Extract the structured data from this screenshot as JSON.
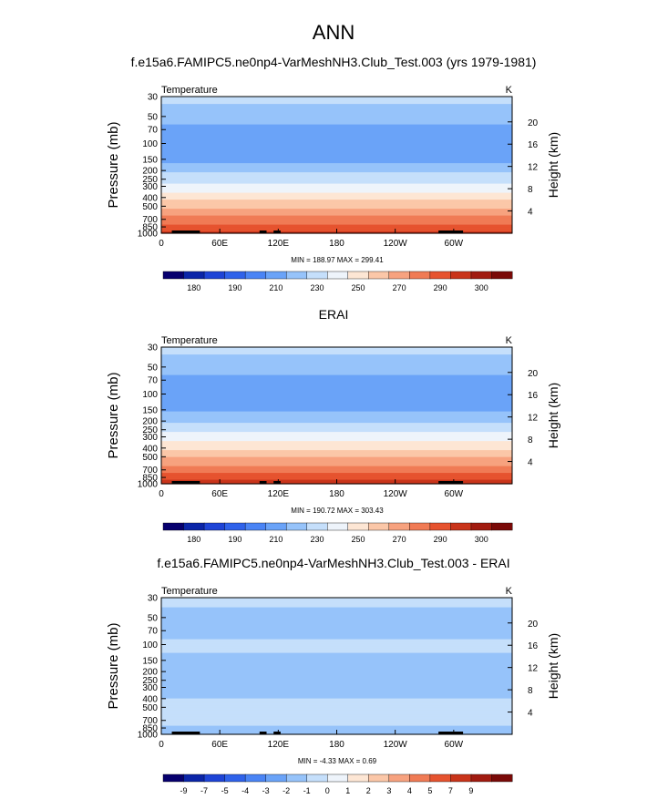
{
  "title": "ANN",
  "chart_data": [
    {
      "type": "heatmap",
      "title": "f.e15a6.FAMIPC5.ne0np4-VarMeshNH3.Club_Test.003 (yrs 1979-1981)",
      "left_label": "Temperature",
      "right_label": "K",
      "ylabel": "Pressure (mb)",
      "ylabel_right": "Height (km)",
      "y_scale": "log",
      "ylim": [
        1000,
        30
      ],
      "y_ticks": [
        "30",
        "50",
        "70",
        "100",
        "150",
        "200",
        "250",
        "300",
        "400",
        "500",
        "700",
        "850",
        "1000"
      ],
      "y_ticks_right": [
        "20",
        "16",
        "12",
        "8",
        "4"
      ],
      "x_ticks": [
        "0",
        "60E",
        "120E",
        "180",
        "120W",
        "60W"
      ],
      "stats": "MIN = 188.97  MAX = 299.41",
      "colorbar_labels": [
        "180",
        "190",
        "210",
        "230",
        "250",
        "270",
        "290",
        "300"
      ],
      "colorbar_colors": [
        "#07006e",
        "#0b25a8",
        "#1e44d6",
        "#2f62ea",
        "#4a84f5",
        "#6aa3f8",
        "#96c3fa",
        "#c5dffb",
        "#eef4fb",
        "#fde6d4",
        "#fbc7a8",
        "#f7a27f",
        "#f07b55",
        "#e6532f",
        "#c9341a",
        "#a11b10",
        "#7a0a08"
      ],
      "profile_levels": [
        {
          "p": 30,
          "t": 223
        },
        {
          "p": 50,
          "t": 215
        },
        {
          "p": 70,
          "t": 207
        },
        {
          "p": 100,
          "t": 200
        },
        {
          "p": 150,
          "t": 208
        },
        {
          "p": 200,
          "t": 218
        },
        {
          "p": 250,
          "t": 226
        },
        {
          "p": 300,
          "t": 234
        },
        {
          "p": 400,
          "t": 248
        },
        {
          "p": 500,
          "t": 259
        },
        {
          "p": 700,
          "t": 274
        },
        {
          "p": 850,
          "t": 284
        },
        {
          "p": 1000,
          "t": 292
        }
      ]
    },
    {
      "type": "heatmap",
      "title": "ERAI",
      "left_label": "Temperature",
      "right_label": "K",
      "ylabel": "Pressure (mb)",
      "ylabel_right": "Height (km)",
      "y_scale": "log",
      "ylim": [
        1000,
        30
      ],
      "y_ticks": [
        "30",
        "50",
        "70",
        "100",
        "150",
        "200",
        "250",
        "300",
        "400",
        "500",
        "700",
        "850",
        "1000"
      ],
      "y_ticks_right": [
        "20",
        "16",
        "12",
        "8",
        "4"
      ],
      "x_ticks": [
        "0",
        "60E",
        "120E",
        "180",
        "120W",
        "60W"
      ],
      "stats": "MIN = 190.72  MAX = 303.43",
      "colorbar_labels": [
        "180",
        "190",
        "210",
        "230",
        "250",
        "270",
        "290",
        "300"
      ],
      "colorbar_colors": [
        "#07006e",
        "#0b25a8",
        "#1e44d6",
        "#2f62ea",
        "#4a84f5",
        "#6aa3f8",
        "#96c3fa",
        "#c5dffb",
        "#eef4fb",
        "#fde6d4",
        "#fbc7a8",
        "#f7a27f",
        "#f07b55",
        "#e6532f",
        "#c9341a",
        "#a11b10",
        "#7a0a08"
      ],
      "profile_levels": [
        {
          "p": 30,
          "t": 223
        },
        {
          "p": 50,
          "t": 215
        },
        {
          "p": 70,
          "t": 207
        },
        {
          "p": 100,
          "t": 201
        },
        {
          "p": 150,
          "t": 209
        },
        {
          "p": 200,
          "t": 219
        },
        {
          "p": 250,
          "t": 227
        },
        {
          "p": 300,
          "t": 235
        },
        {
          "p": 400,
          "t": 249
        },
        {
          "p": 500,
          "t": 260
        },
        {
          "p": 700,
          "t": 276
        },
        {
          "p": 850,
          "t": 286
        },
        {
          "p": 1000,
          "t": 296
        }
      ]
    },
    {
      "type": "heatmap",
      "title": "f.e15a6.FAMIPC5.ne0np4-VarMeshNH3.Club_Test.003 - ERAI",
      "left_label": "Temperature",
      "right_label": "K",
      "ylabel": "Pressure (mb)",
      "ylabel_right": "Height (km)",
      "y_scale": "log",
      "ylim": [
        1000,
        30
      ],
      "y_ticks": [
        "30",
        "50",
        "70",
        "100",
        "150",
        "200",
        "250",
        "300",
        "400",
        "500",
        "700",
        "850",
        "1000"
      ],
      "y_ticks_right": [
        "20",
        "16",
        "12",
        "8",
        "4"
      ],
      "x_ticks": [
        "0",
        "60E",
        "120E",
        "180",
        "120W",
        "60W"
      ],
      "stats": "MIN = -4.33  MAX =   0.69",
      "colorbar_labels": [
        "-9",
        "-7",
        "-5",
        "-4",
        "-3",
        "-2",
        "-1",
        "0",
        "1",
        "2",
        "3",
        "4",
        "5",
        "7",
        "9"
      ],
      "colorbar_colors": [
        "#07006e",
        "#0b25a8",
        "#1e44d6",
        "#2f62ea",
        "#4a84f5",
        "#6aa3f8",
        "#96c3fa",
        "#c5dffb",
        "#eef4fb",
        "#fde6d4",
        "#fbc7a8",
        "#f7a27f",
        "#f07b55",
        "#e6532f",
        "#c9341a",
        "#a11b10",
        "#7a0a08"
      ],
      "profile_levels": [
        {
          "p": 30,
          "d": -0.5
        },
        {
          "p": 50,
          "d": -1.5
        },
        {
          "p": 70,
          "d": -1.5
        },
        {
          "p": 100,
          "d": -0.5
        },
        {
          "p": 150,
          "d": -1.5
        },
        {
          "p": 200,
          "d": -1.5
        },
        {
          "p": 250,
          "d": -1.5
        },
        {
          "p": 300,
          "d": -1.5
        },
        {
          "p": 400,
          "d": -1.0
        },
        {
          "p": 500,
          "d": -0.7
        },
        {
          "p": 700,
          "d": -0.8
        },
        {
          "p": 850,
          "d": -1.2
        },
        {
          "p": 1000,
          "d": -2.0
        }
      ]
    }
  ]
}
